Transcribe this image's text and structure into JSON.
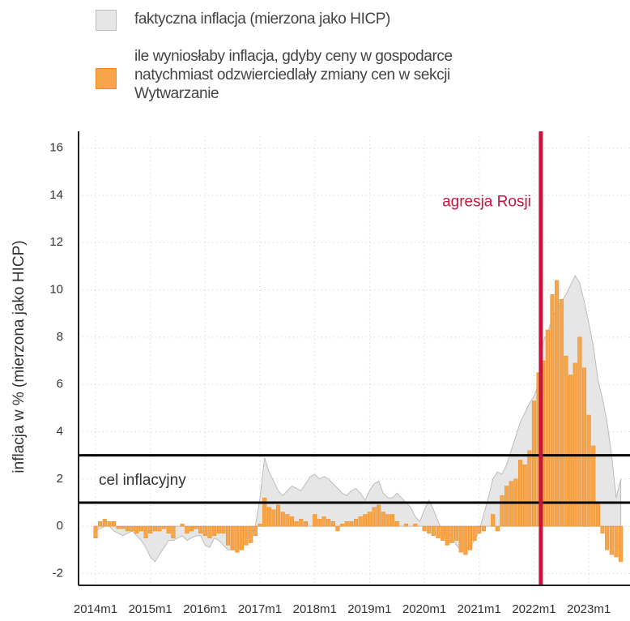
{
  "chart_data": {
    "type": "bar_area",
    "legend_corner": "top",
    "ylabel": "inflacja w % (mierzona jako HICP)",
    "ylim": [
      -2.5,
      16.5
    ],
    "yticks": [
      -2,
      0,
      2,
      4,
      6,
      8,
      10,
      12,
      14,
      16
    ],
    "grid": true,
    "categories": [
      "2014m1",
      null,
      null,
      null,
      null,
      null,
      null,
      null,
      null,
      null,
      null,
      null,
      "2015m1",
      null,
      null,
      null,
      null,
      null,
      null,
      null,
      null,
      null,
      null,
      null,
      "2016m1",
      null,
      null,
      null,
      null,
      null,
      null,
      null,
      null,
      null,
      null,
      null,
      "2017m1",
      null,
      null,
      null,
      null,
      null,
      null,
      null,
      null,
      null,
      null,
      null,
      "2018m1",
      null,
      null,
      null,
      null,
      null,
      null,
      null,
      null,
      null,
      null,
      null,
      "2019m1",
      null,
      null,
      null,
      null,
      null,
      null,
      null,
      null,
      null,
      null,
      null,
      "2020m1",
      null,
      null,
      null,
      null,
      null,
      null,
      null,
      null,
      null,
      null,
      null,
      "2021m1",
      null,
      null,
      null,
      null,
      null,
      null,
      null,
      null,
      null,
      null,
      null,
      "2022m1",
      null,
      null,
      null,
      null,
      null,
      null,
      null,
      null,
      null,
      null,
      null,
      "2023m1",
      null,
      null,
      null,
      null,
      null,
      null,
      null
    ],
    "series": [
      {
        "name": "faktyczna inflacja (mierzona jako HICP)",
        "kind": "area",
        "color": "#e6e6e6",
        "edge": "#bdbdbd",
        "values": [
          -0.2,
          -0.1,
          0,
          0,
          -0.2,
          -0.3,
          -0.4,
          -0.3,
          -0.2,
          -0.4,
          -0.6,
          -0.9,
          -1.3,
          -1.5,
          -1.2,
          -0.9,
          -0.6,
          -0.6,
          -0.5,
          -0.4,
          -0.6,
          -0.5,
          -0.4,
          -0.4,
          -0.8,
          -0.9,
          -0.5,
          -0.6,
          -0.8,
          -1.0,
          -1.0,
          -1.0,
          -0.9,
          -0.6,
          -0.4,
          0.0,
          1.2,
          2.9,
          2.3,
          1.9,
          1.5,
          1.3,
          1.5,
          1.7,
          1.6,
          1.5,
          1.8,
          2.1,
          2.2,
          2.0,
          2.1,
          2.0,
          1.8,
          1.6,
          1.4,
          1.3,
          1.5,
          1.6,
          1.4,
          1.1,
          1.5,
          1.8,
          1.9,
          1.4,
          1.2,
          1.2,
          1.4,
          1.2,
          1.0,
          0.8,
          0.4,
          0.2,
          0.7,
          1.1,
          0.7,
          0.2,
          -0.2,
          -0.3,
          -0.5,
          -0.8,
          -1.0,
          -1.0,
          -0.9,
          -0.6,
          -0.2,
          0.5,
          1.2,
          2.0,
          2.3,
          2.2,
          2.6,
          3.2,
          3.8,
          4.4,
          4.8,
          5.2,
          5.5,
          6.0,
          7.8,
          8.2,
          8.8,
          9.2,
          9.5,
          9.8,
          10.2,
          10.6,
          10.3,
          9.5,
          8.6,
          7.6,
          6.2,
          5.4,
          4.4,
          3.0,
          1.2,
          2.0
        ]
      },
      {
        "name": "ile wyniosłaby inflacja, gdyby ceny w gospodarce natychmiast odzwierciedlały zmiany cen w sekcji Wytwarzanie",
        "kind": "bar",
        "color": "#f7a54a",
        "edge": "#f08a1c",
        "values": [
          -0.5,
          0.2,
          0.3,
          0.2,
          0.2,
          -0.1,
          -0.1,
          -0.2,
          -0.2,
          -0.3,
          -0.2,
          -0.5,
          -0.3,
          -0.2,
          -0.2,
          -0.1,
          -0.3,
          -0.5,
          0.0,
          0.1,
          -0.3,
          -0.2,
          -0.1,
          -0.3,
          -0.4,
          -0.5,
          -0.4,
          -0.3,
          -0.3,
          -0.8,
          -1.0,
          -1.1,
          -1.0,
          -0.8,
          -0.7,
          -0.4,
          0.1,
          1.2,
          0.8,
          0.7,
          0.9,
          0.6,
          0.5,
          0.4,
          0.2,
          0.3,
          0.2,
          0.0,
          0.5,
          0.3,
          0.4,
          0.3,
          0.2,
          -0.2,
          0.1,
          0.2,
          0.2,
          0.3,
          0.4,
          0.5,
          0.6,
          0.8,
          0.9,
          0.6,
          0.5,
          0.5,
          0.2,
          0.0,
          0.1,
          0.0,
          0.1,
          0.0,
          -0.2,
          -0.3,
          -0.4,
          -0.5,
          -0.6,
          -0.8,
          -0.7,
          -0.6,
          -1.1,
          -1.2,
          -1.0,
          -0.6,
          -0.3,
          -0.2,
          0.0,
          0.5,
          -0.2,
          1.3,
          1.7,
          1.9,
          2.0,
          2.8,
          2.6,
          3.2,
          5.3,
          6.5,
          7.0,
          8.3,
          9.8,
          10.4,
          9.6,
          7.2,
          6.4,
          6.9,
          8.0,
          6.7,
          4.7,
          3.4,
          1.0,
          -0.3,
          -1.0,
          -1.2,
          -1.3,
          -1.5
        ]
      }
    ],
    "target": {
      "label": "cel inflacyjny",
      "values": [
        1,
        3
      ],
      "color": "#000000"
    },
    "event": {
      "label": "agresja Rosji",
      "index": 97,
      "color": "#c8143c"
    }
  }
}
